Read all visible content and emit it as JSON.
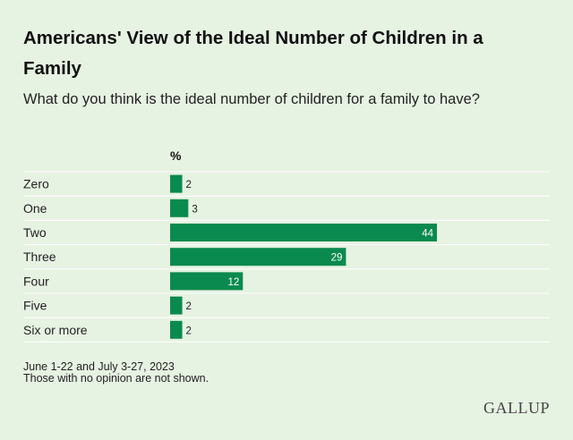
{
  "title": "Americans' View of the Ideal Number of Children in a Family",
  "subtitle": "What do you think is the ideal number of children for a family to have?",
  "unit_label": "%",
  "footnotes": {
    "dates": "June 1-22 and July 3-27, 2023",
    "note": "Those with no opinion are not shown."
  },
  "brand": "GALLUP",
  "colors": {
    "bar": "#0a8a4e",
    "background": "#e6f2e2",
    "gridline": "#ffffff"
  },
  "chart_data": {
    "type": "bar",
    "orientation": "horizontal",
    "categories": [
      "Zero",
      "One",
      "Two",
      "Three",
      "Four",
      "Five",
      "Six or more"
    ],
    "values": [
      2,
      3,
      44,
      29,
      12,
      2,
      2
    ],
    "title": "Americans' View of the Ideal Number of Children in a Family",
    "xlabel": "%",
    "ylabel": "",
    "xlim": [
      0,
      60
    ],
    "data_labels": true,
    "legend": "none"
  }
}
